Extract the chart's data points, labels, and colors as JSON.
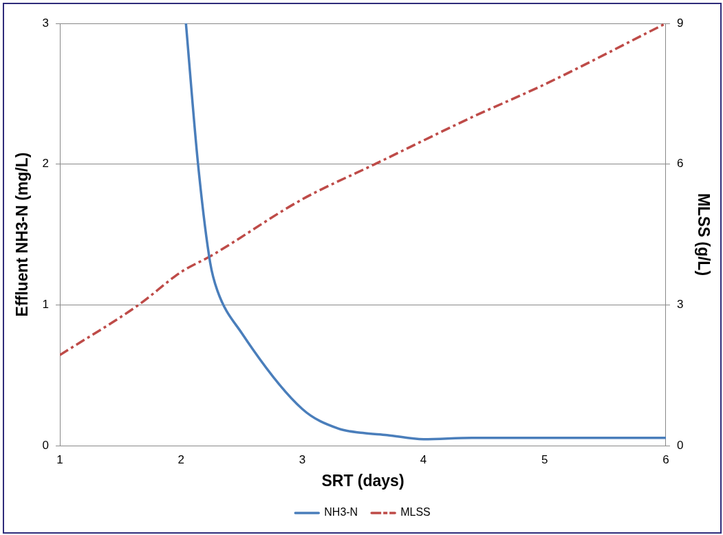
{
  "chart_data": {
    "type": "line",
    "xlabel": "SRT (days)",
    "ylabel": "Effluent NH3-N (mg/L)",
    "y2label": "MLSS (g/L)",
    "xlim": [
      1,
      6
    ],
    "xticks": [
      1,
      2,
      3,
      4,
      5,
      6
    ],
    "ylim": [
      0,
      3
    ],
    "yticks": [
      0,
      1,
      2,
      3
    ],
    "y2lim": [
      0,
      9
    ],
    "y2ticks": [
      0,
      3,
      6,
      9
    ],
    "grid": "y",
    "legend": "bottom",
    "marker": "none",
    "series": [
      {
        "name": "NH3-N",
        "color": "#4a7ebb",
        "line_style": "solid",
        "x": [
          2.04,
          2.14,
          2.24,
          2.3,
          2.5,
          3,
          3.3,
          3.5,
          3.7,
          4,
          4.4,
          5,
          6
        ],
        "values": [
          3,
          2,
          1.3,
          1.1,
          0.8,
          0.26,
          0.12,
          0.09,
          0.075,
          0.045,
          0.055,
          0.055,
          0.055
        ]
      },
      {
        "name": "MLSS",
        "color": "#be4b48",
        "line_style": "dashed",
        "axis": "y2",
        "x": [
          1,
          1.65,
          2,
          2.25,
          3,
          3.6,
          4.4,
          5,
          6
        ],
        "values": [
          1.93,
          3,
          3.7,
          4.05,
          5.25,
          6,
          7,
          7.7,
          9
        ]
      }
    ]
  }
}
